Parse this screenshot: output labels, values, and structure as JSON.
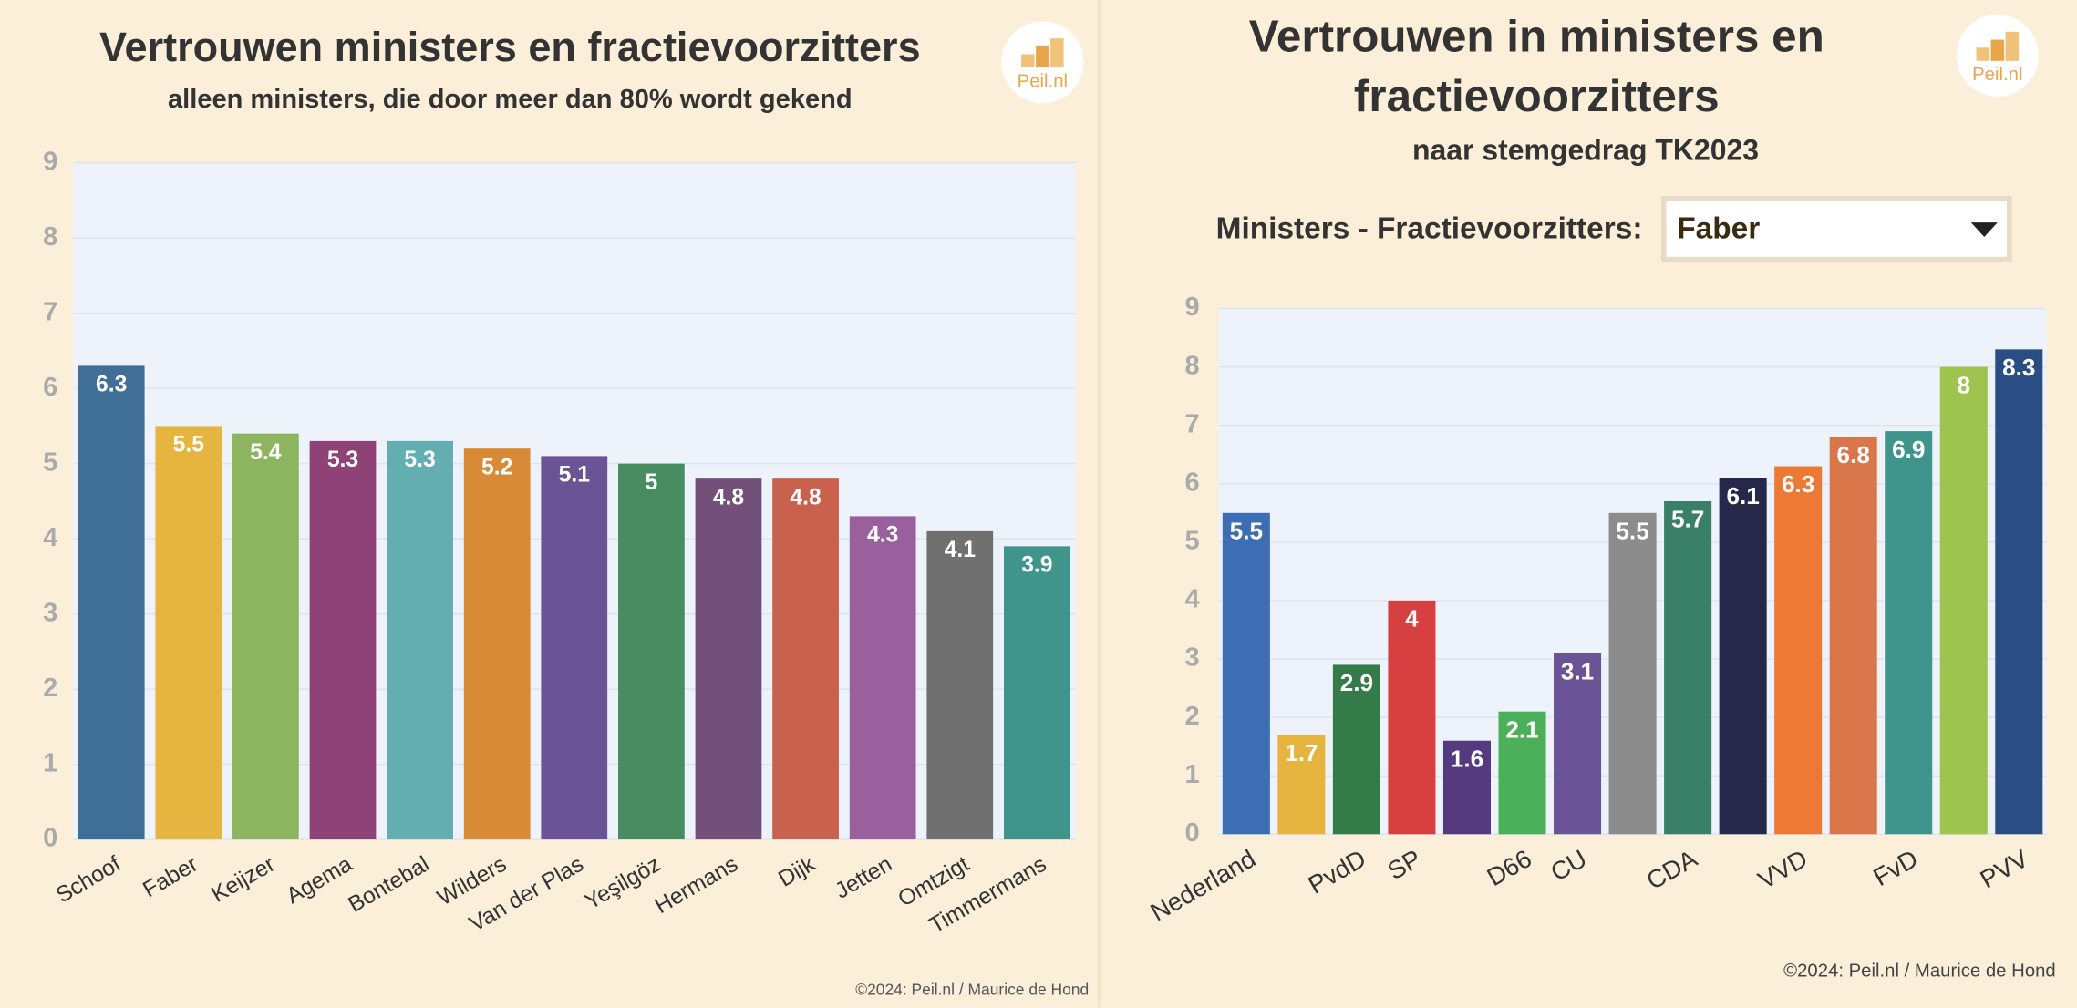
{
  "chart_data": [
    {
      "type": "bar",
      "title": "Vertrouwen ministers en fractievoorzitters",
      "subtitle": "alleen ministers, die door meer dan 80% wordt gekend",
      "logo": "Peil.nl",
      "credit": "©2024: Peil.nl / Maurice de Hond",
      "categories": [
        "Schoof",
        "Faber",
        "Keijzer",
        "Agema",
        "Bontebal",
        "Wilders",
        "Van der Plas",
        "Yeşilgöz",
        "Hermans",
        "Dijk",
        "Jetten",
        "Omtzigt",
        "Timmermans"
      ],
      "values": [
        6.3,
        5.5,
        5.4,
        5.3,
        5.3,
        5.2,
        5.1,
        5,
        4.8,
        4.8,
        4.3,
        4.1,
        3.9
      ],
      "colors": [
        "#3f6e96",
        "#e6b53f",
        "#8db55f",
        "#8e4275",
        "#63aeb0",
        "#d98a37",
        "#6a5496",
        "#4a8c62",
        "#72507a",
        "#c8624f",
        "#9a5f9d",
        "#707070",
        "#3f958c"
      ],
      "ylim": [
        0,
        9
      ],
      "yticks": [
        0,
        1,
        2,
        3,
        4,
        5,
        6,
        7,
        8,
        9
      ],
      "grid": true
    },
    {
      "type": "bar",
      "title": [
        "Vertrouwen in ministers en",
        "fractievoorzitters"
      ],
      "subtitle": "naar stemgedrag TK2023",
      "logo": "Peil.nl",
      "credit": "©2024: Peil.nl / Maurice de Hond",
      "dropdown_label": "Ministers - Fractievoorzitters:",
      "dropdown_value": "Faber",
      "categories": [
        "Nederland",
        null,
        "PvdD",
        "SP",
        null,
        "D66",
        "CU",
        null,
        "CDA",
        null,
        "VVD",
        null,
        "FvD",
        null,
        "PVV"
      ],
      "values": [
        5.5,
        1.7,
        2.9,
        4,
        1.6,
        2.1,
        3.1,
        5.5,
        5.7,
        6.1,
        6.3,
        6.8,
        6.9,
        8,
        8.3
      ],
      "colors": [
        "#3d6db3",
        "#e6b53f",
        "#357a49",
        "#d64040",
        "#553a80",
        "#4caf5a",
        "#6a5496",
        "#8c8c8c",
        "#3a8068",
        "#252848",
        "#ec7a35",
        "#d9764a",
        "#3f958c",
        "#9ec34e",
        "#2a4d84"
      ],
      "ylim": [
        0,
        9
      ],
      "yticks": [
        0,
        1,
        2,
        3,
        4,
        5,
        6,
        7,
        8,
        9
      ],
      "grid": true
    }
  ]
}
